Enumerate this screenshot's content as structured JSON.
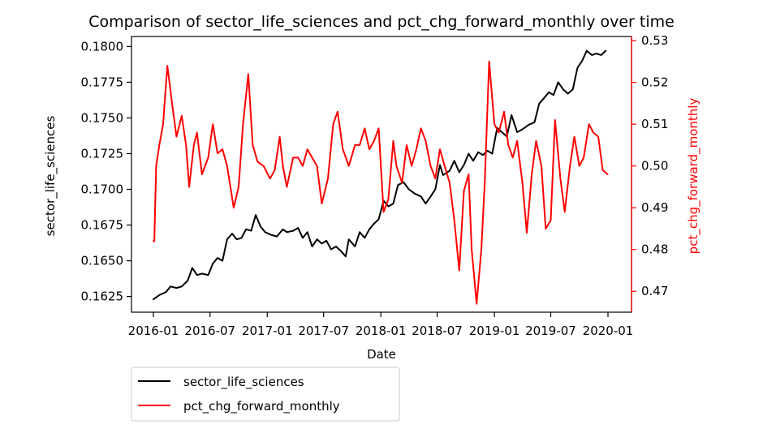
{
  "chart_data": {
    "type": "line",
    "title": "Comparison of sector_life_sciences and pct_chg_forward_monthly over time",
    "xlabel": "Date",
    "ylabel_left": "sector_life_sciences",
    "ylabel_right": "pct_chg_forward_monthly",
    "x_tick_labels": [
      "2016-01",
      "2016-07",
      "2017-01",
      "2017-07",
      "2018-01",
      "2018-07",
      "2019-01",
      "2019-07",
      "2020-01"
    ],
    "y_left_ticks": [
      "0.1625",
      "0.1650",
      "0.1675",
      "0.1700",
      "0.1725",
      "0.1750",
      "0.1775",
      "0.1800"
    ],
    "y_right_ticks": [
      "0.47",
      "0.48",
      "0.49",
      "0.50",
      "0.51",
      "0.52",
      "0.53"
    ],
    "ylim_left": [
      0.1614,
      0.1807
    ],
    "ylim_right": [
      0.465,
      0.531
    ],
    "grid": false,
    "legend_position": "below-left",
    "colors": {
      "left_axis": "#000000",
      "right_axis": "#ff0000"
    },
    "series": [
      {
        "name": "sector_life_sciences",
        "axis": "left",
        "color": "#000000",
        "points": [
          [
            "2016-01-01",
            0.1623
          ],
          [
            "2016-01-20",
            0.1626
          ],
          [
            "2016-02-10",
            0.1628
          ],
          [
            "2016-02-25",
            0.1632
          ],
          [
            "2016-03-15",
            0.1631
          ],
          [
            "2016-04-01",
            0.1632
          ],
          [
            "2016-04-20",
            0.1636
          ],
          [
            "2016-05-05",
            0.1645
          ],
          [
            "2016-05-20",
            0.164
          ],
          [
            "2016-06-05",
            0.1641
          ],
          [
            "2016-06-25",
            0.164
          ],
          [
            "2016-07-10",
            0.1648
          ],
          [
            "2016-07-25",
            0.1652
          ],
          [
            "2016-08-10",
            0.165
          ],
          [
            "2016-08-25",
            0.1665
          ],
          [
            "2016-09-10",
            0.1669
          ],
          [
            "2016-09-25",
            0.1665
          ],
          [
            "2016-10-10",
            0.1666
          ],
          [
            "2016-10-25",
            0.1672
          ],
          [
            "2016-11-10",
            0.1671
          ],
          [
            "2016-11-25",
            0.1682
          ],
          [
            "2016-12-10",
            0.1674
          ],
          [
            "2016-12-25",
            0.167
          ],
          [
            "2017-01-15",
            0.1668
          ],
          [
            "2017-02-01",
            0.1667
          ],
          [
            "2017-02-20",
            0.1672
          ],
          [
            "2017-03-05",
            0.167
          ],
          [
            "2017-03-25",
            0.1671
          ],
          [
            "2017-04-10",
            0.1673
          ],
          [
            "2017-04-25",
            0.1666
          ],
          [
            "2017-05-10",
            0.167
          ],
          [
            "2017-05-25",
            0.166
          ],
          [
            "2017-06-10",
            0.1665
          ],
          [
            "2017-06-25",
            0.1662
          ],
          [
            "2017-07-10",
            0.1664
          ],
          [
            "2017-07-25",
            0.1658
          ],
          [
            "2017-08-10",
            0.166
          ],
          [
            "2017-08-25",
            0.1657
          ],
          [
            "2017-09-10",
            0.1653
          ],
          [
            "2017-09-20",
            0.1665
          ],
          [
            "2017-10-10",
            0.166
          ],
          [
            "2017-10-25",
            0.167
          ],
          [
            "2017-11-10",
            0.1666
          ],
          [
            "2017-11-25",
            0.1672
          ],
          [
            "2017-12-10",
            0.1676
          ],
          [
            "2017-12-25",
            0.1679
          ],
          [
            "2018-01-10",
            0.1692
          ],
          [
            "2018-01-25",
            0.1688
          ],
          [
            "2018-02-10",
            0.169
          ],
          [
            "2018-02-25",
            0.1703
          ],
          [
            "2018-03-15",
            0.1705
          ],
          [
            "2018-04-01",
            0.17
          ],
          [
            "2018-04-20",
            0.1697
          ],
          [
            "2018-05-10",
            0.1695
          ],
          [
            "2018-05-25",
            0.169
          ],
          [
            "2018-06-10",
            0.1695
          ],
          [
            "2018-06-25",
            0.17
          ],
          [
            "2018-07-10",
            0.1717
          ],
          [
            "2018-07-20",
            0.171
          ],
          [
            "2018-08-10",
            0.1713
          ],
          [
            "2018-08-25",
            0.172
          ],
          [
            "2018-09-10",
            0.1712
          ],
          [
            "2018-09-25",
            0.1717
          ],
          [
            "2018-10-10",
            0.1725
          ],
          [
            "2018-10-25",
            0.172
          ],
          [
            "2018-11-10",
            0.1726
          ],
          [
            "2018-11-25",
            0.1724
          ],
          [
            "2018-12-10",
            0.1727
          ],
          [
            "2018-12-25",
            0.1725
          ],
          [
            "2019-01-10",
            0.1743
          ],
          [
            "2019-01-25",
            0.174
          ],
          [
            "2019-02-10",
            0.1737
          ],
          [
            "2019-02-25",
            0.1752
          ],
          [
            "2019-03-15",
            0.174
          ],
          [
            "2019-04-01",
            0.1742
          ],
          [
            "2019-04-20",
            0.1745
          ],
          [
            "2019-05-10",
            0.1747
          ],
          [
            "2019-05-25",
            0.176
          ],
          [
            "2019-06-10",
            0.1764
          ],
          [
            "2019-06-25",
            0.1768
          ],
          [
            "2019-07-10",
            0.1766
          ],
          [
            "2019-07-25",
            0.1775
          ],
          [
            "2019-08-10",
            0.177
          ],
          [
            "2019-08-25",
            0.1767
          ],
          [
            "2019-09-10",
            0.177
          ],
          [
            "2019-09-25",
            0.1785
          ],
          [
            "2019-10-10",
            0.179
          ],
          [
            "2019-10-25",
            0.1797
          ],
          [
            "2019-11-10",
            0.1794
          ],
          [
            "2019-11-25",
            0.1795
          ],
          [
            "2019-12-10",
            0.1794
          ],
          [
            "2019-12-25",
            0.1797
          ]
        ]
      },
      {
        "name": "pct_chg_forward_monthly",
        "axis": "right",
        "color": "#ff0000",
        "points": [
          [
            "2016-01-01",
            0.482
          ],
          [
            "2016-01-04",
            0.482
          ],
          [
            "2016-01-10",
            0.5
          ],
          [
            "2016-01-20",
            0.505
          ],
          [
            "2016-02-01",
            0.51
          ],
          [
            "2016-02-15",
            0.524
          ],
          [
            "2016-03-01",
            0.515
          ],
          [
            "2016-03-15",
            0.507
          ],
          [
            "2016-04-01",
            0.512
          ],
          [
            "2016-04-15",
            0.505
          ],
          [
            "2016-04-25",
            0.495
          ],
          [
            "2016-05-10",
            0.505
          ],
          [
            "2016-05-20",
            0.508
          ],
          [
            "2016-06-05",
            0.498
          ],
          [
            "2016-06-25",
            0.502
          ],
          [
            "2016-07-10",
            0.51
          ],
          [
            "2016-07-25",
            0.503
          ],
          [
            "2016-08-10",
            0.504
          ],
          [
            "2016-08-25",
            0.5
          ],
          [
            "2016-09-15",
            0.49
          ],
          [
            "2016-10-01",
            0.495
          ],
          [
            "2016-10-15",
            0.51
          ],
          [
            "2016-11-01",
            0.522
          ],
          [
            "2016-11-15",
            0.505
          ],
          [
            "2016-12-01",
            0.501
          ],
          [
            "2016-12-20",
            0.5
          ],
          [
            "2017-01-10",
            0.497
          ],
          [
            "2017-01-25",
            0.499
          ],
          [
            "2017-02-10",
            0.507
          ],
          [
            "2017-02-20",
            0.5
          ],
          [
            "2017-03-05",
            0.495
          ],
          [
            "2017-03-25",
            0.502
          ],
          [
            "2017-04-10",
            0.502
          ],
          [
            "2017-04-25",
            0.5
          ],
          [
            "2017-05-10",
            0.504
          ],
          [
            "2017-05-25",
            0.502
          ],
          [
            "2017-06-10",
            0.5
          ],
          [
            "2017-06-25",
            0.491
          ],
          [
            "2017-07-15",
            0.497
          ],
          [
            "2017-08-01",
            0.51
          ],
          [
            "2017-08-15",
            0.513
          ],
          [
            "2017-09-01",
            0.504
          ],
          [
            "2017-09-20",
            0.5
          ],
          [
            "2017-10-10",
            0.505
          ],
          [
            "2017-10-25",
            0.505
          ],
          [
            "2017-11-10",
            0.509
          ],
          [
            "2017-11-25",
            0.504
          ],
          [
            "2017-12-10",
            0.506
          ],
          [
            "2017-12-25",
            0.509
          ],
          [
            "2018-01-10",
            0.489
          ],
          [
            "2018-01-25",
            0.492
          ],
          [
            "2018-02-10",
            0.506
          ],
          [
            "2018-02-20",
            0.5
          ],
          [
            "2018-03-10",
            0.496
          ],
          [
            "2018-03-25",
            0.505
          ],
          [
            "2018-04-10",
            0.5
          ],
          [
            "2018-04-25",
            0.504
          ],
          [
            "2018-05-10",
            0.509
          ],
          [
            "2018-05-25",
            0.506
          ],
          [
            "2018-06-10",
            0.5
          ],
          [
            "2018-06-25",
            0.497
          ],
          [
            "2018-07-10",
            0.504
          ],
          [
            "2018-07-25",
            0.5
          ],
          [
            "2018-08-10",
            0.496
          ],
          [
            "2018-08-25",
            0.487
          ],
          [
            "2018-09-10",
            0.475
          ],
          [
            "2018-09-25",
            0.494
          ],
          [
            "2018-10-10",
            0.498
          ],
          [
            "2018-10-20",
            0.48
          ],
          [
            "2018-11-05",
            0.467
          ],
          [
            "2018-11-20",
            0.48
          ],
          [
            "2018-12-01",
            0.496
          ],
          [
            "2018-12-15",
            0.525
          ],
          [
            "2019-01-01",
            0.51
          ],
          [
            "2019-01-15",
            0.508
          ],
          [
            "2019-02-01",
            0.513
          ],
          [
            "2019-02-15",
            0.505
          ],
          [
            "2019-03-01",
            0.502
          ],
          [
            "2019-03-15",
            0.506
          ],
          [
            "2019-04-01",
            0.496
          ],
          [
            "2019-04-15",
            0.484
          ],
          [
            "2019-05-01",
            0.498
          ],
          [
            "2019-05-15",
            0.506
          ],
          [
            "2019-06-01",
            0.5
          ],
          [
            "2019-06-15",
            0.485
          ],
          [
            "2019-07-01",
            0.487
          ],
          [
            "2019-07-15",
            0.511
          ],
          [
            "2019-08-01",
            0.497
          ],
          [
            "2019-08-15",
            0.489
          ],
          [
            "2019-09-01",
            0.5
          ],
          [
            "2019-09-15",
            0.507
          ],
          [
            "2019-10-01",
            0.5
          ],
          [
            "2019-10-15",
            0.502
          ],
          [
            "2019-11-01",
            0.51
          ],
          [
            "2019-11-15",
            0.508
          ],
          [
            "2019-12-01",
            0.507
          ],
          [
            "2019-12-15",
            0.499
          ],
          [
            "2019-12-31",
            0.498
          ]
        ]
      }
    ]
  }
}
